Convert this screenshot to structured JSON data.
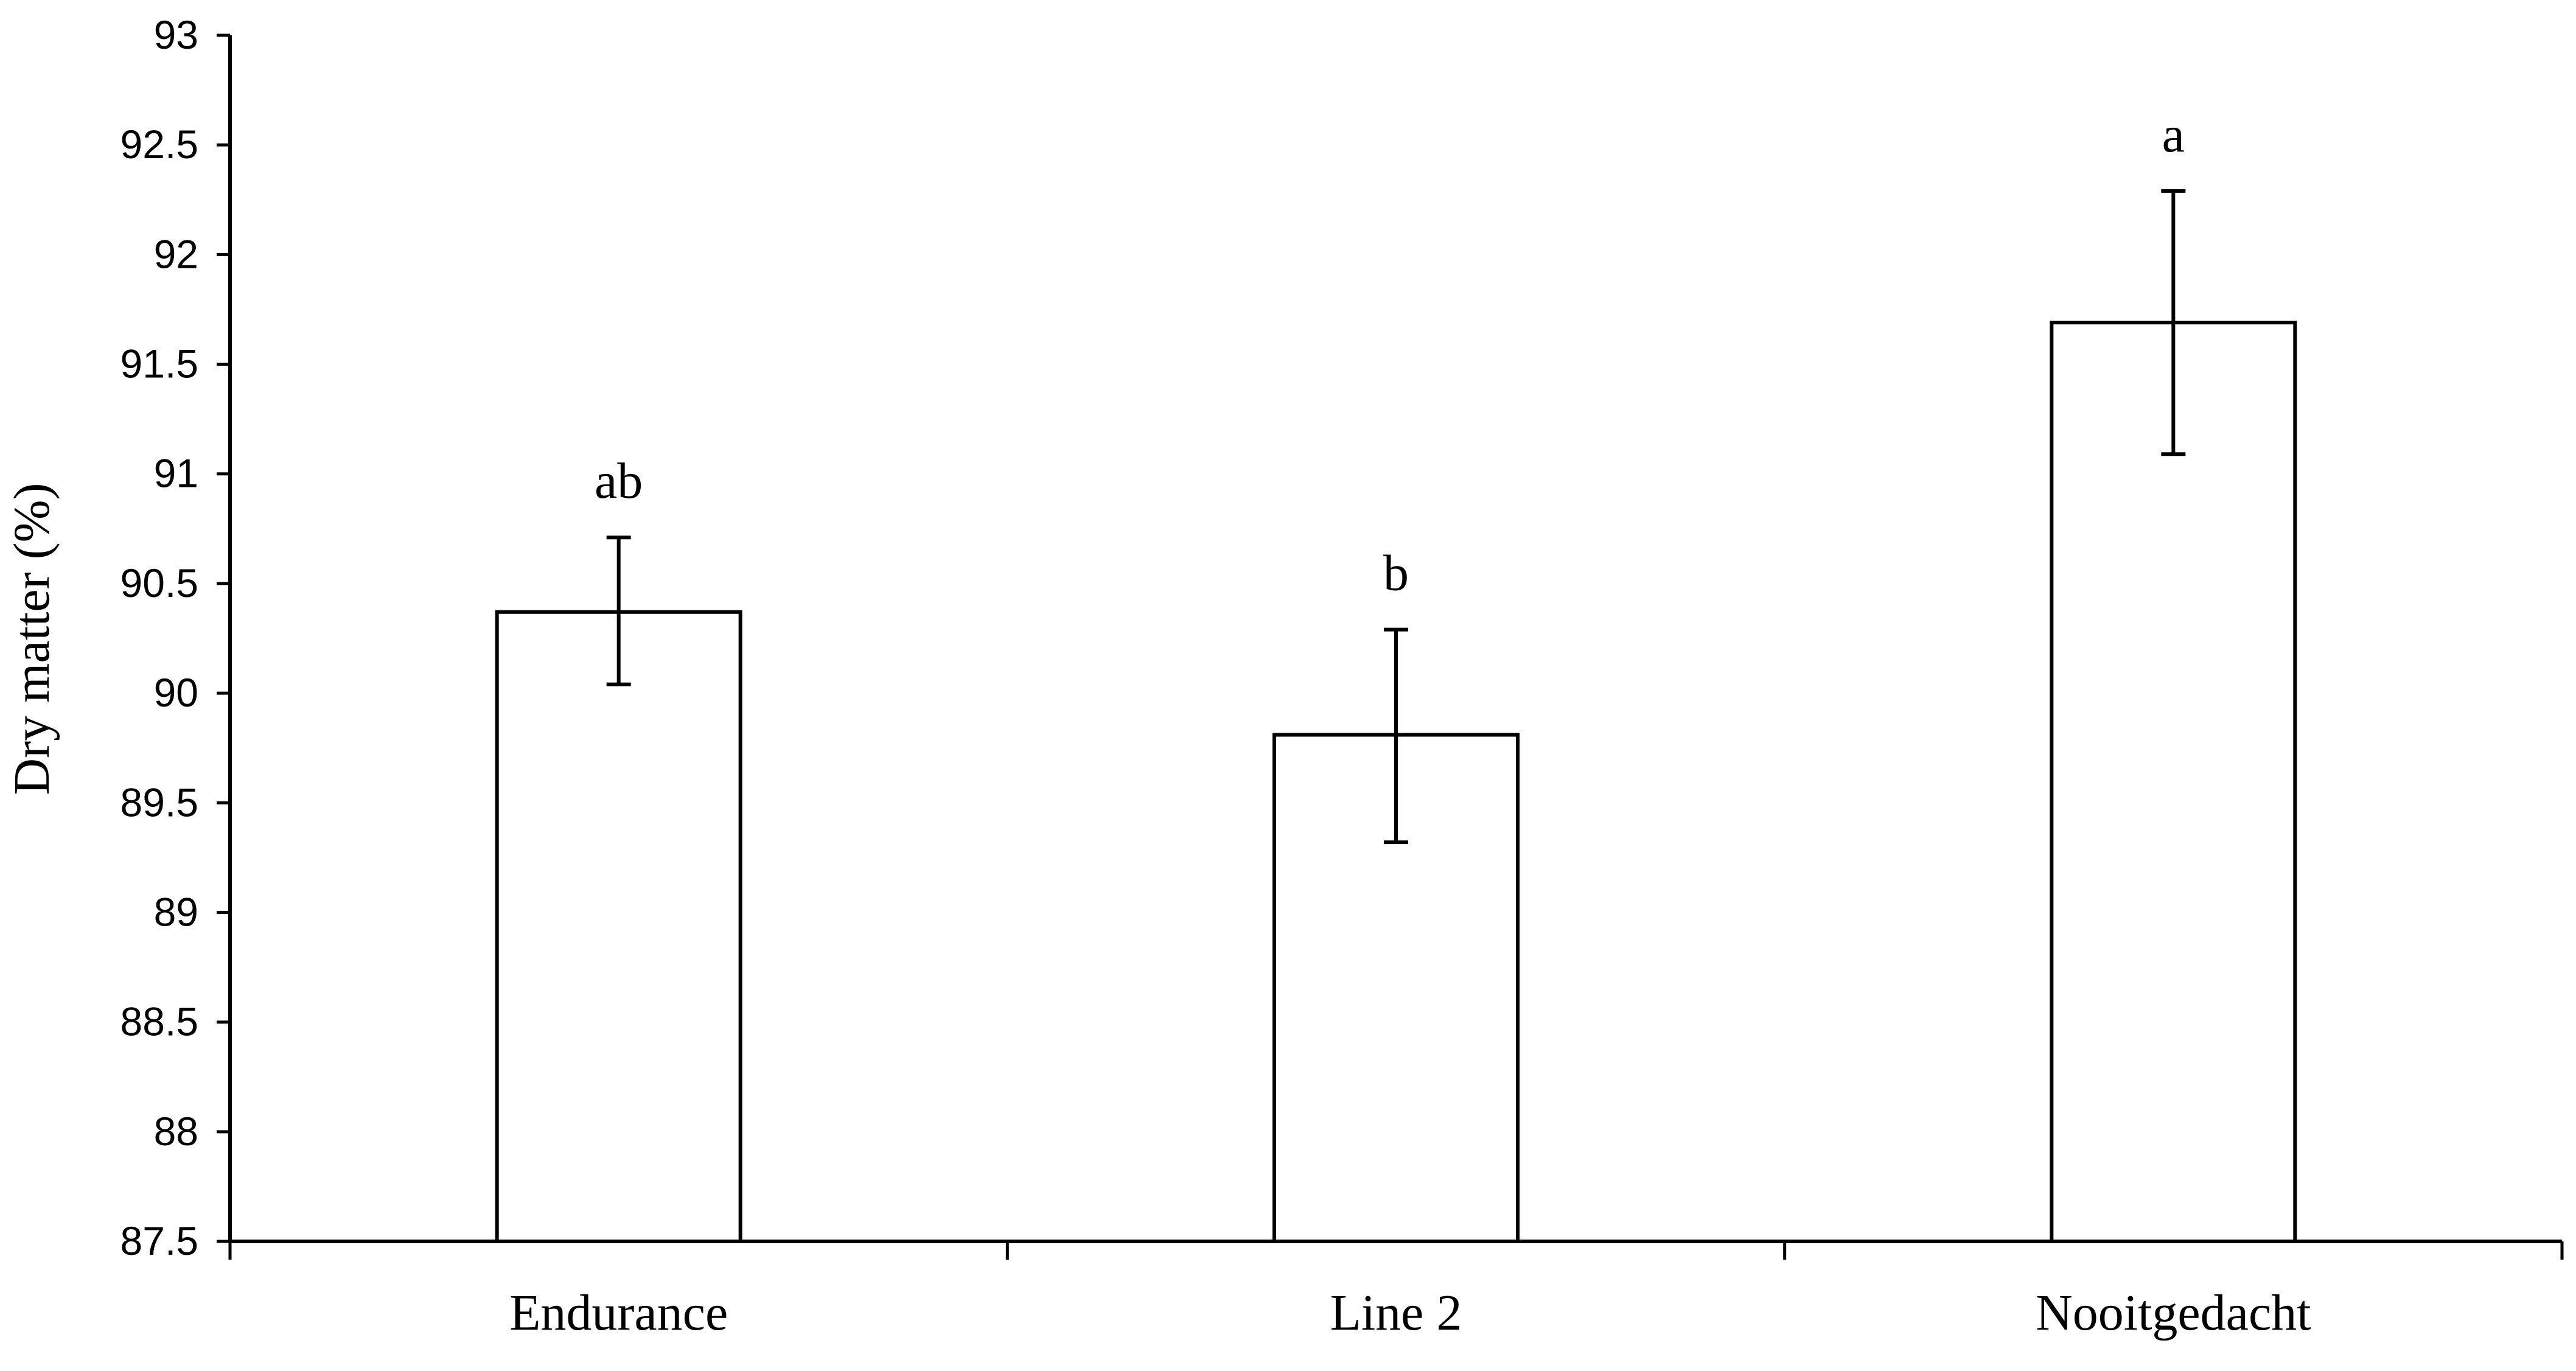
{
  "chart_data": {
    "type": "bar",
    "categories": [
      "Endurance",
      "Line 2",
      "Nooitgedacht"
    ],
    "values": [
      90.37,
      89.81,
      91.69
    ],
    "error_upper": [
      90.71,
      90.29,
      92.29
    ],
    "error_lower": [
      90.04,
      89.32,
      91.09
    ],
    "significance_labels": [
      "ab",
      "b",
      "a"
    ],
    "ylabel": "Dry matter (%)",
    "xlabel": "",
    "title": "",
    "ylim": [
      87.5,
      93
    ],
    "yticks": [
      "87.5",
      "88",
      "88.5",
      "89",
      "89.5",
      "90",
      "90.5",
      "91",
      "91.5",
      "92",
      "92.5",
      "93"
    ],
    "grid": false,
    "legend": "none",
    "bar_fill": "#ffffff",
    "bar_stroke": "#000000"
  }
}
